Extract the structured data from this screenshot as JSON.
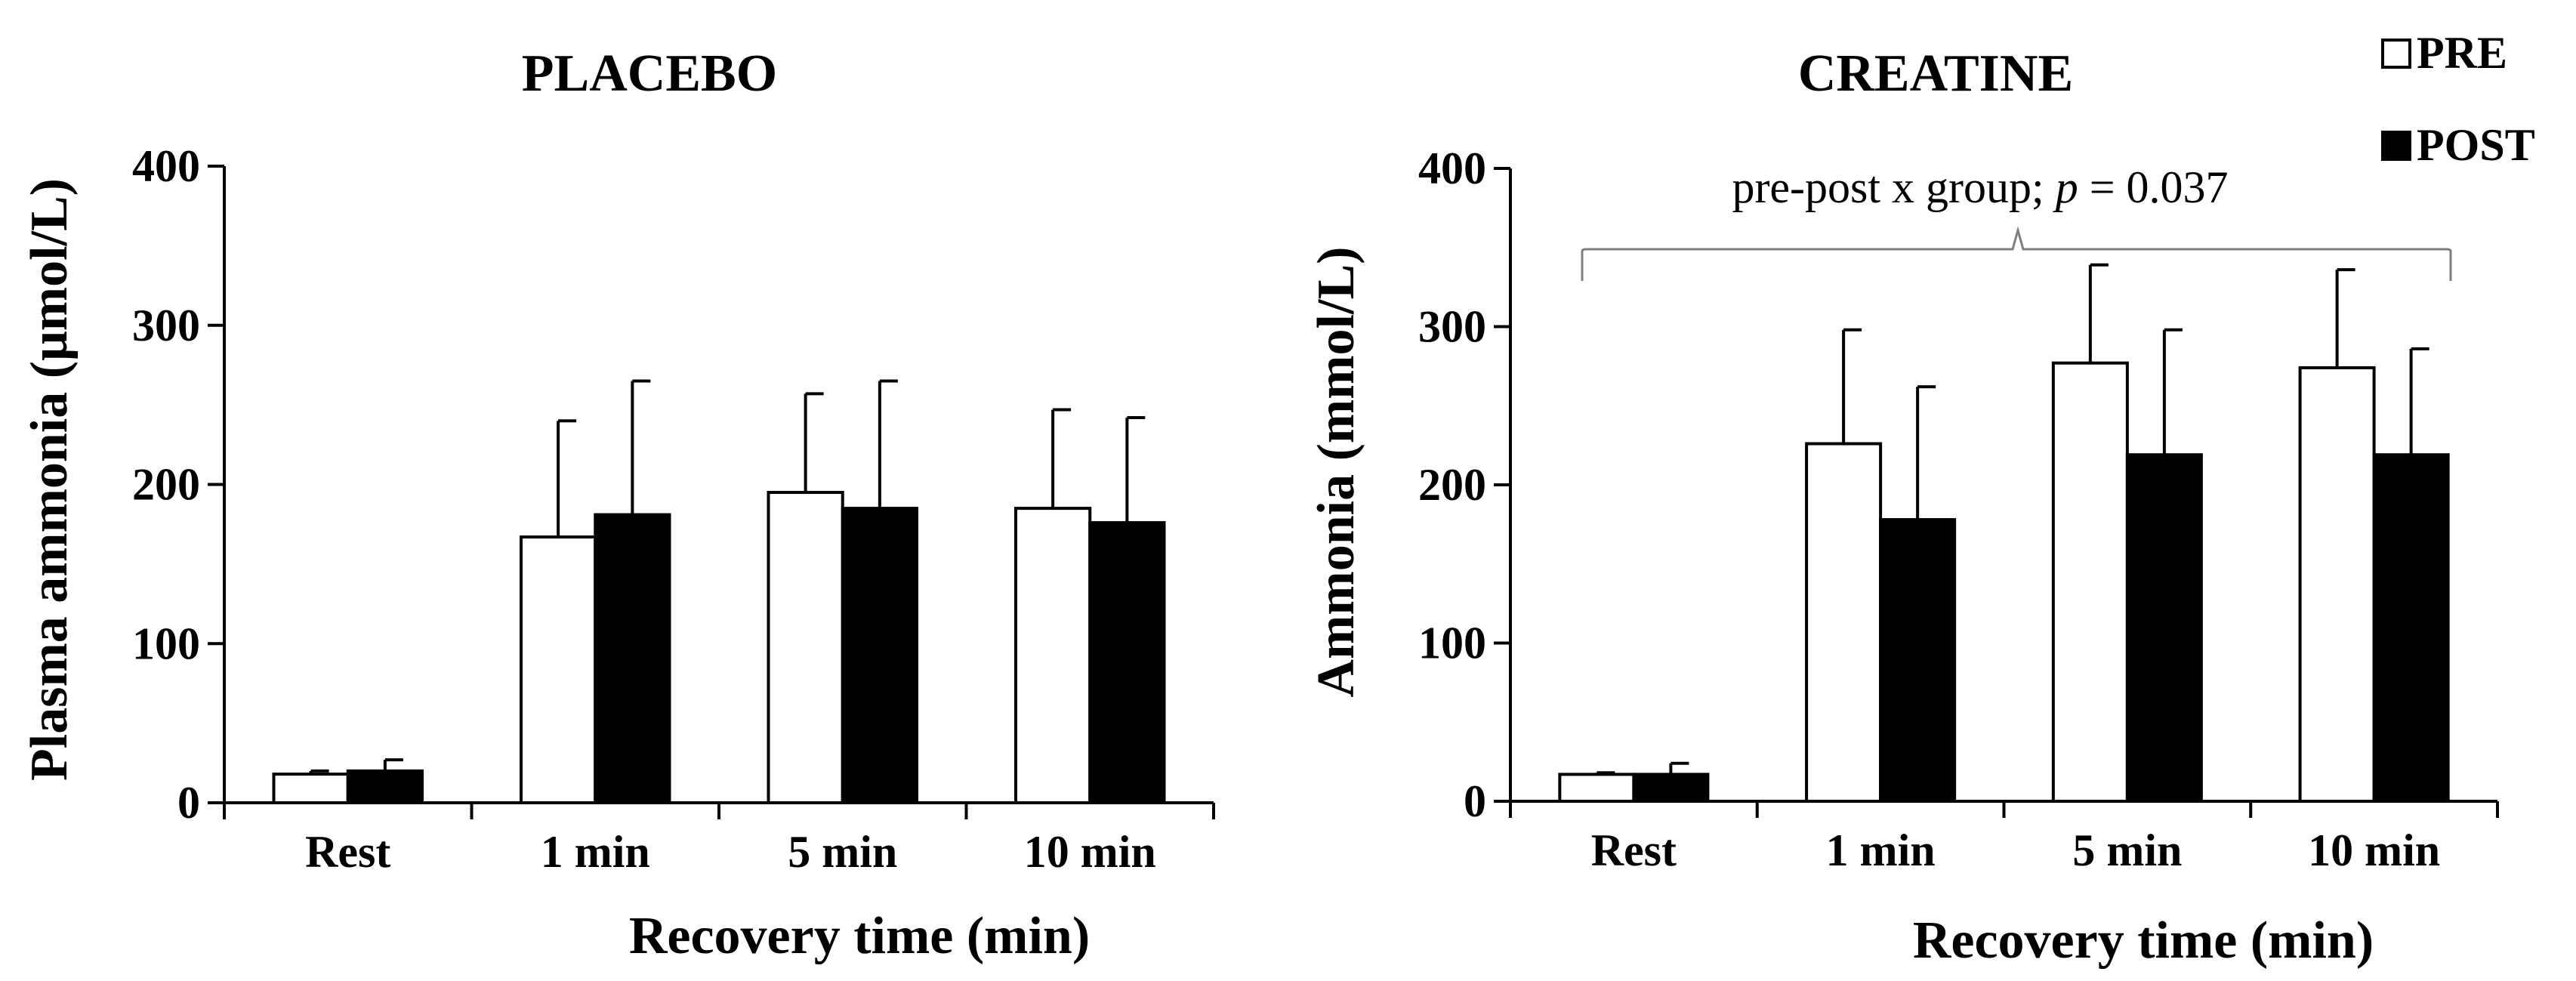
{
  "chart_data": [
    {
      "type": "bar",
      "title": "PLACEBO",
      "xlabel": "Recovery time (min)",
      "ylabel": "Plasma ammonia (μmol/L)",
      "ylim": [
        0,
        400
      ],
      "yticks": [
        0,
        100,
        200,
        300,
        400
      ],
      "categories": [
        "Rest",
        "1 min",
        "5 min",
        "10 min"
      ],
      "series": [
        {
          "name": "PRE",
          "values": [
            18,
            167,
            195,
            185
          ],
          "errors": [
            2,
            73,
            62,
            62
          ]
        },
        {
          "name": "POST",
          "values": [
            20,
            181,
            185,
            176
          ],
          "errors": [
            7,
            84,
            80,
            66
          ]
        }
      ]
    },
    {
      "type": "bar",
      "title": "CREATINE",
      "xlabel": "Recovery time  (min)",
      "ylabel": "Ammonia (mmol/L)",
      "ylim": [
        0,
        400
      ],
      "yticks": [
        0,
        100,
        200,
        300,
        400
      ],
      "categories": [
        "Rest",
        "1 min",
        "5 min",
        "10 min"
      ],
      "series": [
        {
          "name": "PRE",
          "values": [
            17,
            226,
            277,
            274
          ],
          "errors": [
            1,
            72,
            62,
            62
          ]
        },
        {
          "name": "POST",
          "values": [
            17,
            178,
            219,
            219
          ],
          "errors": [
            7,
            84,
            79,
            67
          ]
        }
      ],
      "annotation": {
        "prefix": "pre-post x group; ",
        "stat": "p",
        "suffix": " = 0.037"
      }
    }
  ],
  "legend": {
    "items": [
      {
        "label": "PRE",
        "fill": "#ffffff"
      },
      {
        "label": "POST",
        "fill": "#000000"
      }
    ],
    "position": "top-right"
  },
  "colors": {
    "pre": "#ffffff",
    "post": "#000000",
    "stroke": "#000000",
    "bracket": "#7f7f7f"
  }
}
